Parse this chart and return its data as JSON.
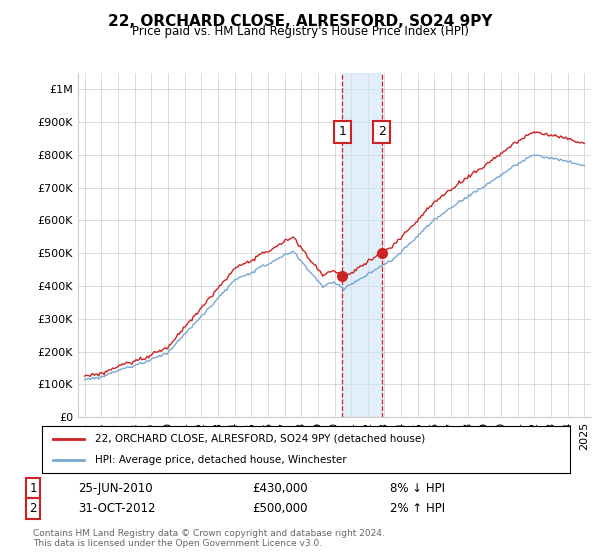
{
  "title": "22, ORCHARD CLOSE, ALRESFORD, SO24 9PY",
  "subtitle": "Price paid vs. HM Land Registry's House Price Index (HPI)",
  "ytick_values": [
    0,
    100000,
    200000,
    300000,
    400000,
    500000,
    600000,
    700000,
    800000,
    900000,
    1000000
  ],
  "ylim": [
    0,
    1050000
  ],
  "xlim_start": 1994.6,
  "xlim_end": 2025.4,
  "hpi_color": "#7aa8d2",
  "price_color": "#cc2222",
  "sale1_x": 2010.48,
  "sale1_y": 430000,
  "sale2_x": 2012.83,
  "sale2_y": 500000,
  "shade_color": "#d0e4f5",
  "shade_alpha": 0.6,
  "legend_label_red": "22, ORCHARD CLOSE, ALRESFORD, SO24 9PY (detached house)",
  "legend_label_blue": "HPI: Average price, detached house, Winchester",
  "annotation1_date": "25-JUN-2010",
  "annotation1_price": "£430,000",
  "annotation1_hpi": "8% ↓ HPI",
  "annotation2_date": "31-OCT-2012",
  "annotation2_price": "£500,000",
  "annotation2_hpi": "2% ↑ HPI",
  "footer": "Contains HM Land Registry data © Crown copyright and database right 2024.\nThis data is licensed under the Open Government Licence v3.0.",
  "bg_color": "#ffffff",
  "grid_color": "#cccccc"
}
